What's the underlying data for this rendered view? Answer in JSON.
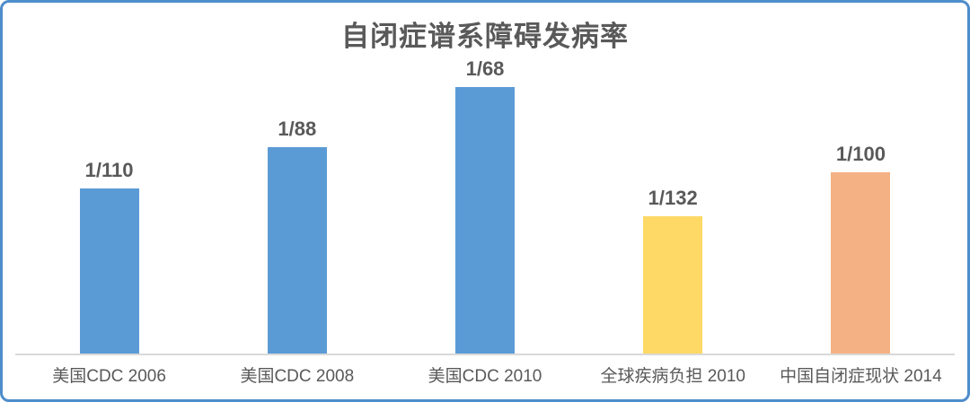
{
  "colors": {
    "border": "#4E8DCB",
    "axis_line": "#D9D9D9",
    "text": "#595959",
    "bar_blue": "#5B9BD5",
    "bar_yellow": "#FFD966",
    "bar_orange": "#F4B183"
  },
  "chart_data": {
    "type": "bar",
    "title": "自闭症谱系障碍发病率",
    "categories": [
      "美国CDC 2006",
      "美国CDC 2008",
      "美国CDC 2010",
      "全球疾病负担 2010",
      "中国自闭症现状 2014"
    ],
    "value_labels": [
      "1/110",
      "1/88",
      "1/68",
      "1/132",
      "1/100"
    ],
    "values": [
      0.0090909,
      0.0113636,
      0.0147059,
      0.0075758,
      0.01
    ],
    "bar_colors": [
      "#5B9BD5",
      "#5B9BD5",
      "#5B9BD5",
      "#FFD966",
      "#F4B183"
    ],
    "xlabel": "",
    "ylabel": "",
    "ylim": [
      0,
      0.0155
    ],
    "grid": false,
    "legend": false,
    "y_axis_visible": false
  }
}
